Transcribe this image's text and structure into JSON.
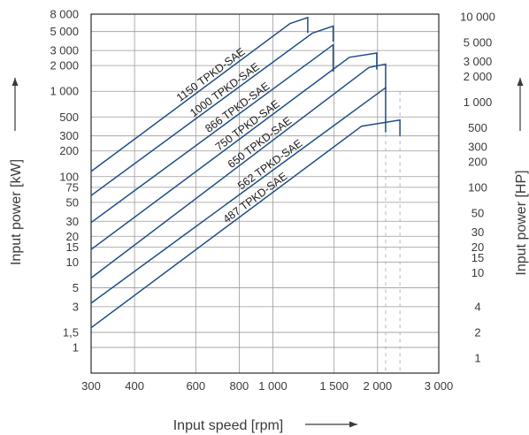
{
  "chart_data": {
    "type": "line",
    "xscale": "log",
    "yscale": "log",
    "xlabel": "Input speed [rpm]",
    "ylabel_left": "Input power [kW]",
    "ylabel_right": "Input power [HP]",
    "xlim": [
      300,
      3000
    ],
    "ylim_kw": [
      0.5,
      8000
    ],
    "x_ticks": [
      300,
      400,
      600,
      800,
      1000,
      1500,
      2000,
      3000
    ],
    "x_tick_labels": [
      "300",
      "400",
      "600",
      "800",
      "1 000",
      "1 500",
      "2 000",
      "3 000"
    ],
    "y_left_ticks": [
      1,
      1.5,
      3,
      5,
      10,
      15,
      20,
      30,
      50,
      75,
      100,
      200,
      300,
      500,
      1000,
      2000,
      3000,
      5000,
      8000
    ],
    "y_left_tick_labels": [
      "1",
      "1,5",
      "3",
      "5",
      "10",
      "15",
      "20",
      "30",
      "50",
      "75",
      "100",
      "200",
      "300",
      "500",
      "1 000",
      "2 000",
      "3 000",
      "5 000",
      "8 000"
    ],
    "y_right_ticks": [
      1,
      2,
      4,
      10,
      15,
      20,
      30,
      50,
      100,
      200,
      300,
      500,
      1000,
      2000,
      3000,
      5000,
      10000
    ],
    "y_right_tick_labels": [
      "1",
      "2",
      "4",
      "10",
      "15",
      "20",
      "30",
      "50",
      "100",
      "200",
      "300",
      "500",
      "1 000",
      "2 000",
      "3 000",
      "5 000",
      "10 000"
    ],
    "hp_per_kw": 1.341,
    "series": [
      {
        "name": "1150 TPKD-SAE",
        "points": [
          [
            300,
            115
          ],
          [
            1120,
            6200
          ],
          [
            1260,
            7300
          ],
          [
            1260,
            4800
          ]
        ]
      },
      {
        "name": "1000 TPKD-SAE",
        "points": [
          [
            300,
            60
          ],
          [
            1300,
            4800
          ],
          [
            1490,
            5800
          ],
          [
            1490,
            3800
          ]
        ]
      },
      {
        "name": "866 TPKD-SAE",
        "points": [
          [
            300,
            29
          ],
          [
            1490,
            3500
          ],
          [
            1490,
            1700
          ]
        ]
      },
      {
        "name": "750 TPKD-SAE",
        "points": [
          [
            300,
            14
          ],
          [
            1660,
            2500
          ],
          [
            1990,
            2800
          ],
          [
            1990,
            1800
          ]
        ]
      },
      {
        "name": "650 TPKD-SAE",
        "points": [
          [
            300,
            6.5
          ],
          [
            1890,
            1900
          ],
          [
            2110,
            2080
          ],
          [
            2110,
            1050
          ]
        ]
      },
      {
        "name": "562 TPKD-SAE",
        "points": [
          [
            300,
            3.3
          ],
          [
            2110,
            1100
          ],
          [
            2110,
            330
          ]
        ]
      },
      {
        "name": "487 TPKD-SAE",
        "points": [
          [
            300,
            1.7
          ],
          [
            1800,
            390
          ],
          [
            2320,
            460
          ],
          [
            2320,
            300
          ]
        ]
      }
    ],
    "dashed_x": [
      2110,
      2320
    ],
    "grid": true,
    "legend": "inline labels along lines",
    "arrows": [
      "x-axis title arrow right",
      "y-axis title arrows up"
    ]
  },
  "colors": {
    "series": "#1f4e86",
    "grid": "#9a9a9a",
    "text": "#3a3a3a"
  }
}
